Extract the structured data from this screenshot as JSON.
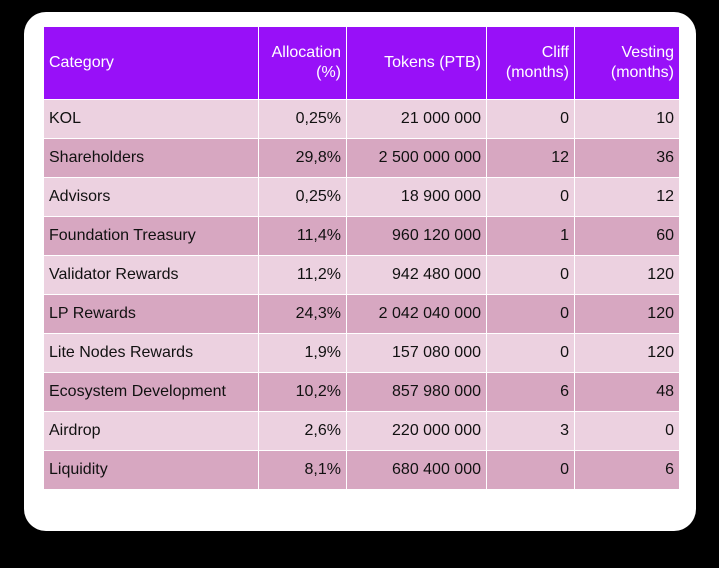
{
  "table": {
    "headers": [
      {
        "line1": "Category",
        "line2": ""
      },
      {
        "line1": "Allocation",
        "line2": "(%)"
      },
      {
        "line1": "Tokens (PTB)",
        "line2": ""
      },
      {
        "line1": "Cliff",
        "line2": "(months)"
      },
      {
        "line1": "Vesting",
        "line2": "(months)"
      }
    ],
    "rows": [
      [
        "KOL",
        "0,25%",
        "21 000 000",
        "0",
        "10"
      ],
      [
        "Shareholders",
        "29,8%",
        "2 500 000 000",
        "12",
        "36"
      ],
      [
        "Advisors",
        "0,25%",
        "18 900 000",
        "0",
        "12"
      ],
      [
        "Foundation Treasury",
        "11,4%",
        "960 120 000",
        "1",
        "60"
      ],
      [
        "Validator Rewards",
        "11,2%",
        "942 480 000",
        "0",
        "120"
      ],
      [
        "LP Rewards",
        "24,3%",
        "2 042 040 000",
        "0",
        "120"
      ],
      [
        "Lite Nodes Rewards",
        "1,9%",
        "157 080 000",
        "0",
        "120"
      ],
      [
        "Ecosystem Development",
        "10,2%",
        "857 980 000",
        "6",
        "48"
      ],
      [
        "Airdrop",
        "2,6%",
        "220 000 000",
        "3",
        "0"
      ],
      [
        "Liquidity",
        "8,1%",
        "680 400 000",
        "0",
        "6"
      ]
    ]
  },
  "colors": {
    "header_bg": "#9810f8",
    "row_light": "#ecd1e0",
    "row_dark": "#d7a7c1",
    "backdrop": "#000000"
  }
}
